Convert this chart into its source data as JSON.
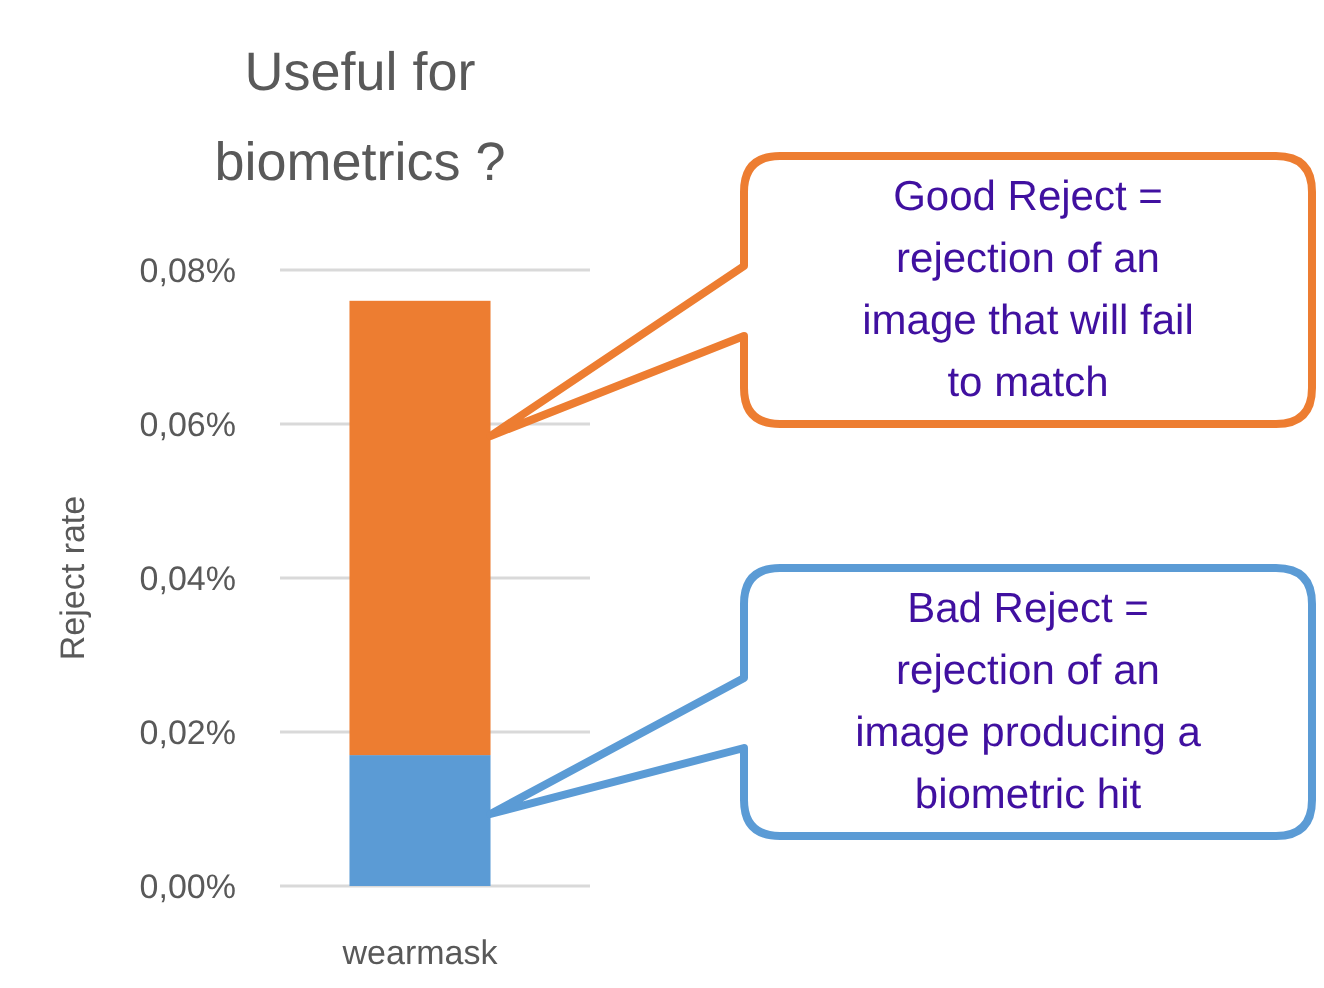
{
  "chart_data": {
    "type": "bar",
    "title": "Useful for biometrics ?",
    "ylabel": "Reject rate",
    "categories": [
      "wearmask"
    ],
    "stacked": true,
    "grid": "y",
    "series": [
      {
        "name": null,
        "color": "#5b9bd5",
        "values": [
          0.017
        ]
      },
      {
        "name": null,
        "color": "#ed7d31",
        "values": [
          0.059
        ]
      }
    ],
    "ylim": [
      0,
      0.08
    ],
    "yticks": [
      {
        "value": 0,
        "label": "0,00%"
      },
      {
        "value": 0.02,
        "label": "0,02%"
      },
      {
        "value": 0.04,
        "label": "0,04%"
      },
      {
        "value": 0.06,
        "label": "0,06%"
      },
      {
        "value": 0.08,
        "label": "0,08%"
      }
    ],
    "annotations": [
      "Good Reject = rejection of an image that will fail to match",
      "Bad Reject = rejection of an image producing a biometric hit"
    ]
  }
}
